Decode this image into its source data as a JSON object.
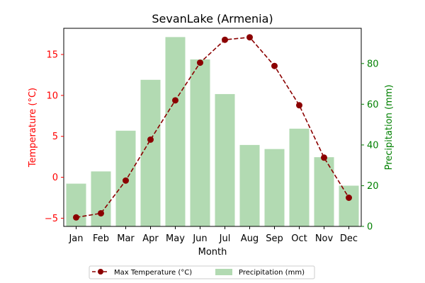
{
  "chart_data": {
    "type": "bar+line",
    "title": "SevanLake (Armenia)",
    "xlabel": "Month",
    "categories": [
      "Jan",
      "Feb",
      "Mar",
      "Apr",
      "May",
      "Jun",
      "Jul",
      "Aug",
      "Sep",
      "Oct",
      "Nov",
      "Dec"
    ],
    "y_left": {
      "label": "Temperature (°C)",
      "range": [
        -6,
        18.2
      ],
      "ticks": [
        -5,
        0,
        5,
        10,
        15
      ],
      "color": "#ff0000"
    },
    "y_right": {
      "label": "Precipitation (mm)",
      "range": [
        0,
        97.3
      ],
      "ticks": [
        0,
        20,
        40,
        60,
        80
      ],
      "color": "#008000"
    },
    "series": [
      {
        "name": "Max Temperature (°C)",
        "type": "line",
        "axis": "left",
        "color": "#8b0000",
        "values": [
          -4.9,
          -4.4,
          -0.4,
          4.6,
          9.4,
          14.0,
          16.8,
          17.1,
          13.6,
          8.8,
          2.4,
          -2.5
        ]
      },
      {
        "name": "Precipitation (mm)",
        "type": "bar",
        "axis": "right",
        "color": "#b2dab2",
        "values": [
          21,
          27,
          47,
          72,
          93,
          82,
          65,
          40,
          38,
          48,
          34,
          20
        ]
      }
    ],
    "legend_position": "bottom-center",
    "grid": false
  }
}
